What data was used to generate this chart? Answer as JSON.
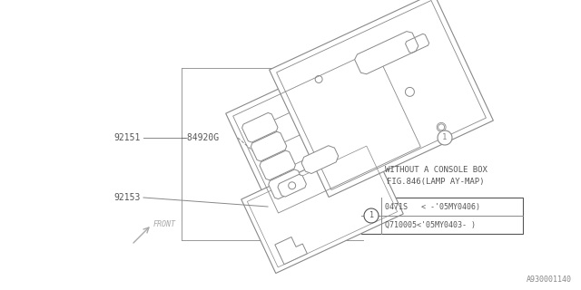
{
  "bg_color": "#ffffff",
  "line_color": "#888888",
  "title_line1": "WITHOUT A CONSOLE BOX",
  "title_line2": "FIG.846(LAMP AY-MAP)",
  "callout_rows": [
    "0471S   < -'05MY0406)",
    "Q710005<'05MY0403- )"
  ],
  "front_label": "FRONT",
  "diagram_number": "A930001140",
  "label_92151": "92151",
  "label_84920G": "84920G",
  "label_92153": "92153",
  "font_size": 7
}
